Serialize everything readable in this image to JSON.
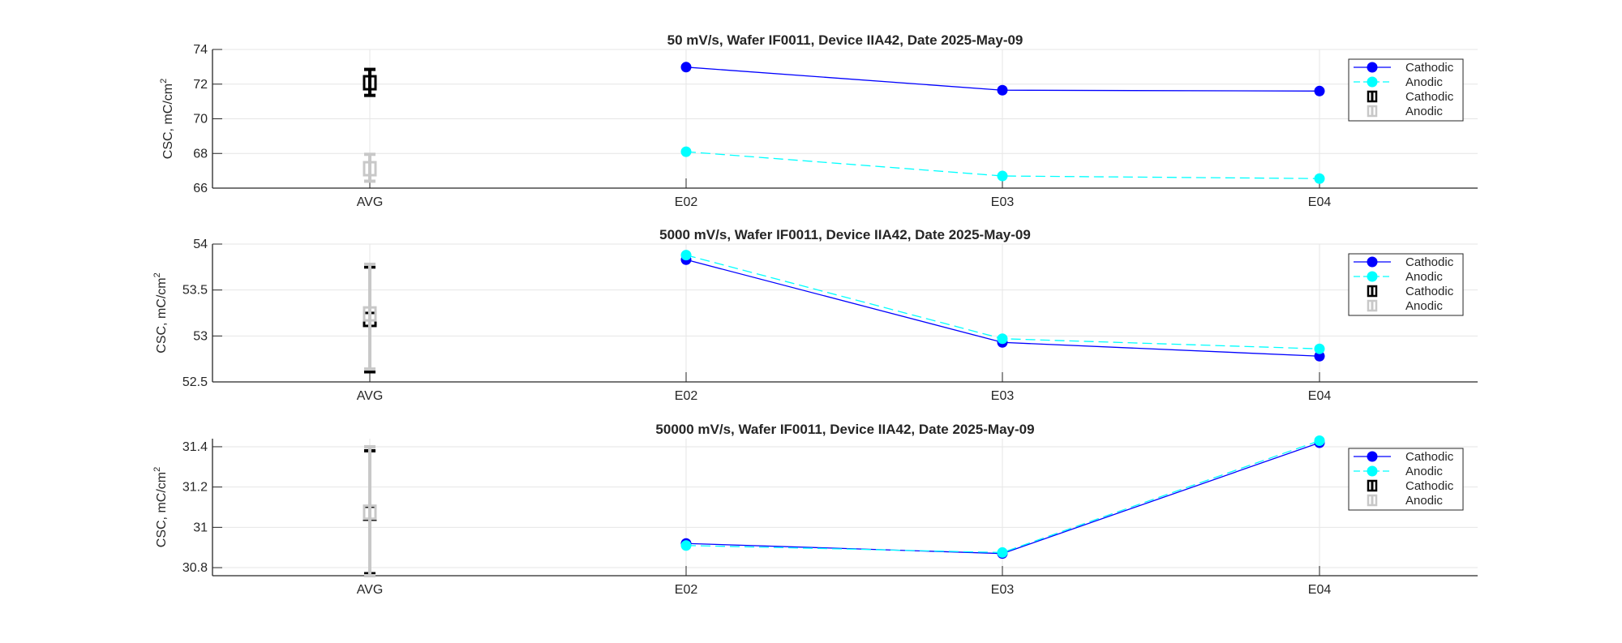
{
  "chart_data": [
    {
      "type": "line",
      "title": "50 mV/s, Wafer IF0011, Device IIA42, Date 2025-May-09",
      "ylabel": "CSC,  mC/cm",
      "ylabel_sup": "2",
      "categories": [
        "AVG",
        "E02",
        "E03",
        "E04"
      ],
      "ylim": [
        66,
        74
      ],
      "yticks": [
        66,
        68,
        70,
        72,
        74
      ],
      "ytick_labels": [
        "66",
        "68",
        "70",
        "72",
        "74"
      ],
      "grid": true,
      "legend_position": "top-right",
      "series": [
        {
          "name": "Cathodic",
          "style": "solid",
          "color": "#0000ff",
          "x": [
            "E02",
            "E03",
            "E04"
          ],
          "values": [
            72.98,
            71.65,
            71.6
          ]
        },
        {
          "name": "Anodic",
          "style": "dashed",
          "color": "#00ffff",
          "x": [
            "E02",
            "E03",
            "E04"
          ],
          "values": [
            68.1,
            66.7,
            66.55
          ]
        }
      ],
      "averages": [
        {
          "name": "Cathodic",
          "color": "#000000",
          "mean": 72.08,
          "low": 71.35,
          "high": 72.85
        },
        {
          "name": "Anodic",
          "color": "#c8c8c8",
          "mean": 67.12,
          "low": 66.4,
          "high": 67.95
        }
      ]
    },
    {
      "type": "line",
      "title": "5000 mV/s, Wafer IF0011, Device IIA42, Date 2025-May-09",
      "ylabel": "CSC,  mC/cm",
      "ylabel_sup": "2",
      "categories": [
        "AVG",
        "E02",
        "E03",
        "E04"
      ],
      "ylim": [
        52.5,
        54
      ],
      "yticks": [
        52.5,
        53,
        53.5,
        54
      ],
      "ytick_labels": [
        "52.5",
        "53",
        "53.5",
        "54"
      ],
      "grid": true,
      "legend_position": "top-right",
      "series": [
        {
          "name": "Cathodic",
          "style": "solid",
          "color": "#0000ff",
          "x": [
            "E02",
            "E03",
            "E04"
          ],
          "values": [
            53.83,
            52.93,
            52.78
          ]
        },
        {
          "name": "Anodic",
          "style": "dashed",
          "color": "#00ffff",
          "x": [
            "E02",
            "E03",
            "E04"
          ],
          "values": [
            53.88,
            52.97,
            52.86
          ]
        }
      ],
      "averages": [
        {
          "name": "Cathodic",
          "color": "#000000",
          "mean": 53.18,
          "low": 52.61,
          "high": 53.75
        },
        {
          "name": "Anodic",
          "color": "#c8c8c8",
          "mean": 53.24,
          "low": 52.64,
          "high": 53.78
        }
      ]
    },
    {
      "type": "line",
      "title": "50000 mV/s, Wafer IF0011, Device IIA42, Date 2025-May-09",
      "ylabel": "CSC,  mC/cm",
      "ylabel_sup": "2",
      "categories": [
        "AVG",
        "E02",
        "E03",
        "E04"
      ],
      "ylim": [
        30.76,
        31.44
      ],
      "yticks": [
        30.8,
        31,
        31.2,
        31.4
      ],
      "ytick_labels": [
        "30.8",
        "31",
        "31.2",
        "31.4"
      ],
      "grid": true,
      "legend_position": "top-right",
      "series": [
        {
          "name": "Cathodic",
          "style": "solid",
          "color": "#0000ff",
          "x": [
            "E02",
            "E03",
            "E04"
          ],
          "values": [
            30.92,
            30.87,
            31.42
          ]
        },
        {
          "name": "Anodic",
          "style": "dashed",
          "color": "#00ffff",
          "x": [
            "E02",
            "E03",
            "E04"
          ],
          "values": [
            30.91,
            30.875,
            31.43
          ]
        }
      ],
      "averages": [
        {
          "name": "Cathodic",
          "color": "#000000",
          "mean": 31.07,
          "low": 30.77,
          "high": 31.38
        },
        {
          "name": "Anodic",
          "color": "#c8c8c8",
          "mean": 31.075,
          "low": 30.76,
          "high": 31.4
        }
      ]
    }
  ]
}
